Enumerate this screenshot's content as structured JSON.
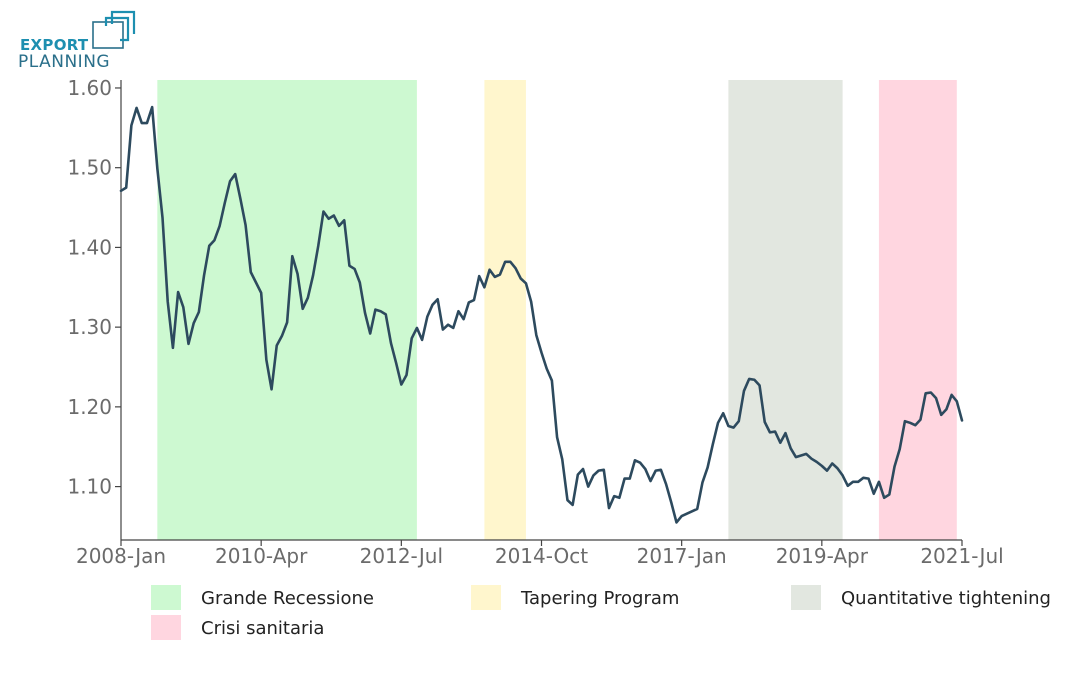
{
  "brand": {
    "line1": "EXPORT",
    "line2": "PLANNING"
  },
  "chart_data": {
    "type": "line",
    "title": "",
    "xlabel": "",
    "ylabel": "",
    "x_start": "2008-01",
    "x_end": "2021-07",
    "ylim": [
      1.033,
      1.61
    ],
    "x_ticks": [
      "2008-Jan",
      "2010-Apr",
      "2012-Jul",
      "2014-Oct",
      "2017-Jan",
      "2019-Apr",
      "2021-Jul"
    ],
    "y_ticks": [
      1.1,
      1.2,
      1.3,
      1.4,
      1.5,
      1.6
    ],
    "y_tick_labels": [
      "1.10",
      "1.20",
      "1.30",
      "1.40",
      "1.50",
      "1.60"
    ],
    "line_color": "#2d4a5e",
    "grid": false,
    "legend_position": "bottom",
    "periods": [
      {
        "name": "Grande Recessione",
        "start": "2008-08",
        "end": "2012-10",
        "color": "#cdf9d1"
      },
      {
        "name": "Tapering Program",
        "start": "2013-11",
        "end": "2014-07",
        "color": "#fff6cd"
      },
      {
        "name": "Quantitative tightening",
        "start": "2017-10",
        "end": "2019-08",
        "color": "#e2e7e0"
      },
      {
        "name": "Crisi sanitaria",
        "start": "2020-03",
        "end": "2021-06",
        "color": "#ffd6e0"
      }
    ],
    "series": [
      {
        "values": [
          1.471,
          1.475,
          1.553,
          1.575,
          1.556,
          1.556,
          1.576,
          1.499,
          1.437,
          1.332,
          1.274,
          1.344,
          1.325,
          1.279,
          1.305,
          1.319,
          1.365,
          1.402,
          1.409,
          1.427,
          1.456,
          1.483,
          1.492,
          1.461,
          1.428,
          1.369,
          1.356,
          1.343,
          1.259,
          1.222,
          1.277,
          1.289,
          1.306,
          1.389,
          1.367,
          1.323,
          1.337,
          1.365,
          1.402,
          1.445,
          1.436,
          1.44,
          1.427,
          1.434,
          1.377,
          1.373,
          1.356,
          1.318,
          1.292,
          1.322,
          1.32,
          1.316,
          1.28,
          1.255,
          1.228,
          1.24,
          1.286,
          1.299,
          1.284,
          1.313,
          1.328,
          1.335,
          1.297,
          1.303,
          1.299,
          1.32,
          1.31,
          1.331,
          1.334,
          1.364,
          1.35,
          1.372,
          1.363,
          1.366,
          1.382,
          1.382,
          1.374,
          1.361,
          1.355,
          1.332,
          1.29,
          1.268,
          1.248,
          1.233,
          1.162,
          1.134,
          1.083,
          1.077,
          1.115,
          1.122,
          1.1,
          1.114,
          1.12,
          1.121,
          1.073,
          1.088,
          1.086,
          1.11,
          1.11,
          1.133,
          1.13,
          1.122,
          1.107,
          1.12,
          1.121,
          1.103,
          1.08,
          1.055,
          1.063,
          1.066,
          1.069,
          1.072,
          1.105,
          1.124,
          1.153,
          1.18,
          1.192,
          1.176,
          1.174,
          1.182,
          1.22,
          1.235,
          1.234,
          1.227,
          1.181,
          1.168,
          1.169,
          1.155,
          1.167,
          1.148,
          1.137,
          1.139,
          1.141,
          1.135,
          1.131,
          1.126,
          1.12,
          1.129,
          1.123,
          1.114,
          1.101,
          1.106,
          1.106,
          1.111,
          1.11,
          1.091,
          1.106,
          1.086,
          1.09,
          1.125,
          1.147,
          1.182,
          1.18,
          1.177,
          1.184,
          1.217,
          1.218,
          1.211,
          1.19,
          1.197,
          1.215,
          1.207,
          1.183
        ]
      }
    ]
  }
}
